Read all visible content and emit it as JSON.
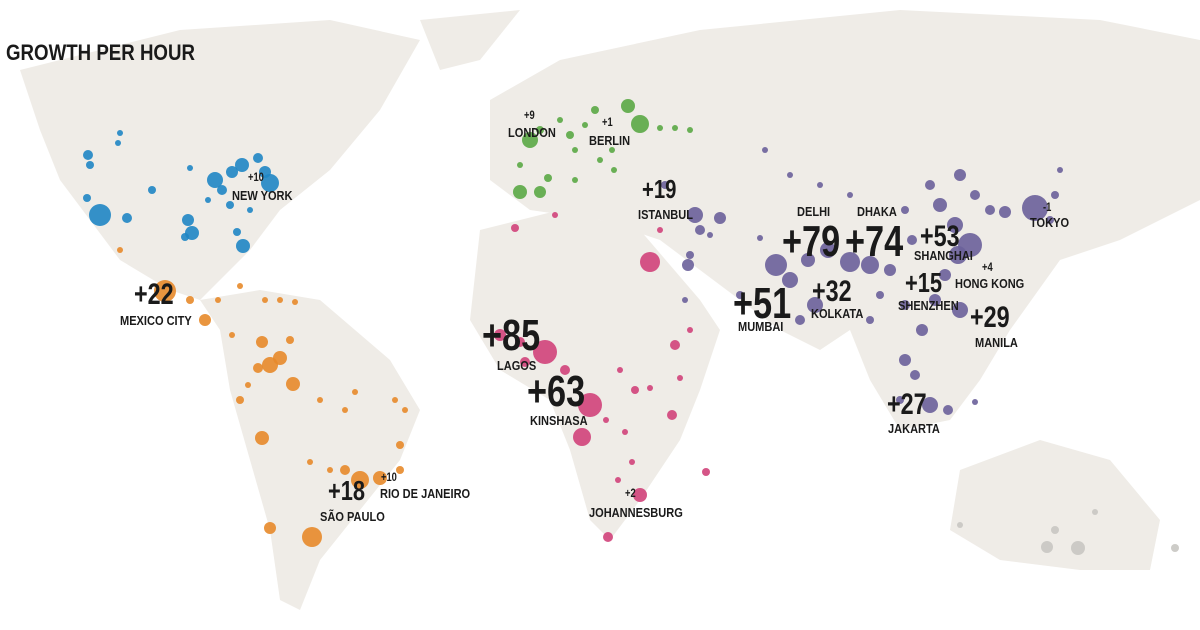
{
  "title": "GROWTH PER HOUR",
  "cities": [
    {
      "name": "NEW YORK",
      "growth": "+10"
    },
    {
      "name": "LONDON",
      "growth": "+9"
    },
    {
      "name": "BERLIN",
      "growth": "+1"
    },
    {
      "name": "ISTANBUL",
      "growth": "+19"
    },
    {
      "name": "MEXICO CITY",
      "growth": "+22"
    },
    {
      "name": "LAGOS",
      "growth": "+85"
    },
    {
      "name": "KINSHASA",
      "growth": "+63"
    },
    {
      "name": "DELHI",
      "growth": "+79"
    },
    {
      "name": "DHAKA",
      "growth": "+74"
    },
    {
      "name": "SHANGHAI",
      "growth": "+53"
    },
    {
      "name": "TOKYO",
      "growth": "-1"
    },
    {
      "name": "HONG KONG",
      "growth": "+4"
    },
    {
      "name": "SHENZHEN",
      "growth": "+15"
    },
    {
      "name": "KOLKATA",
      "growth": "+32"
    },
    {
      "name": "MUMBAI",
      "growth": "+51"
    },
    {
      "name": "MANILA",
      "growth": "+29"
    },
    {
      "name": "JAKARTA",
      "growth": "+27"
    },
    {
      "name": "RIO DE JANEIRO",
      "growth": "+10"
    },
    {
      "name": "SÃO PAULO",
      "growth": "+18"
    },
    {
      "name": "JOHANNESBURG",
      "growth": "+2"
    }
  ]
}
